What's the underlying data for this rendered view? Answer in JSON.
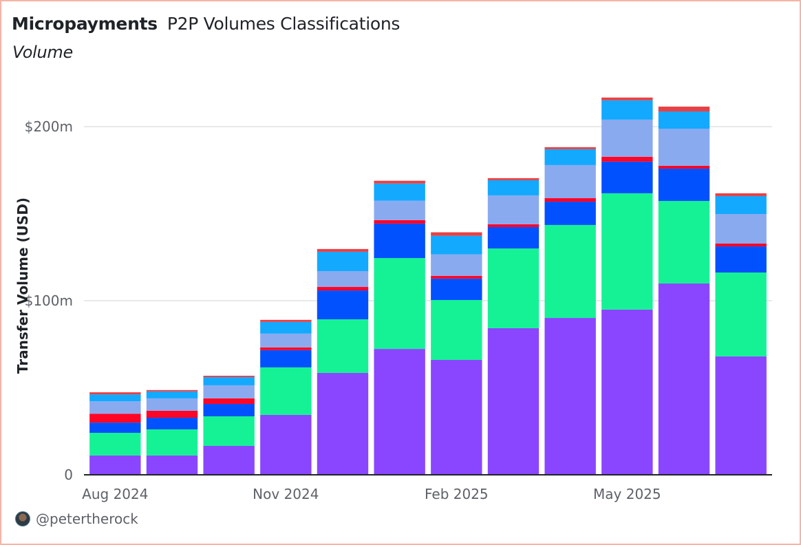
{
  "header": {
    "title": "Micropayments",
    "subtitle_inline": "P2P Volumes Classifications",
    "subtitle": "Volume"
  },
  "footer": {
    "author": "@petertherock",
    "avatar_icon": "user-avatar"
  },
  "chart_data": {
    "type": "bar",
    "stacked": true,
    "title": "Micropayments P2P Volumes Classifications",
    "subtitle": "Volume",
    "xlabel": "",
    "ylabel": "Transfer Volume (USD)",
    "ylim": [
      0,
      225
    ],
    "y_unit": "million USD",
    "yticks": [
      0,
      100,
      200
    ],
    "ytick_labels": [
      "0",
      "$100m",
      "$200m"
    ],
    "x_tick_labels": [
      {
        "index": 0,
        "label": "Aug 2024"
      },
      {
        "index": 3,
        "label": "Nov 2024"
      },
      {
        "index": 6,
        "label": "Feb 2025"
      },
      {
        "index": 9,
        "label": "May 2025"
      }
    ],
    "categories": [
      "2024-08",
      "2024-09",
      "2024-10",
      "2024-11",
      "2024-12",
      "2025-01",
      "2025-02",
      "2025-03",
      "2025-04",
      "2025-05",
      "2025-06",
      "2025-07"
    ],
    "grid": true,
    "legend": "none",
    "series": [
      {
        "name": "purple",
        "color": "#8a46ff",
        "values": [
          11.1,
          11.1,
          16.6,
          34.4,
          58.5,
          72.3,
          66.0,
          84.2,
          90.1,
          94.9,
          109.9,
          68.0
        ]
      },
      {
        "name": "green",
        "color": "#15f296",
        "values": [
          13.0,
          15.0,
          17.0,
          27.3,
          30.8,
          52.2,
          34.4,
          45.8,
          53.4,
          66.8,
          47.4,
          48.2
        ]
      },
      {
        "name": "blue",
        "color": "#0151ff",
        "values": [
          5.9,
          6.7,
          7.1,
          9.9,
          16.6,
          19.8,
          12.3,
          12.3,
          13.4,
          18.2,
          18.6,
          15.0
        ]
      },
      {
        "name": "red",
        "color": "#ff0627",
        "values": [
          5.1,
          4.0,
          3.2,
          1.6,
          2.0,
          2.0,
          1.6,
          1.6,
          2.0,
          2.8,
          1.6,
          1.6
        ]
      },
      {
        "name": "light-blue",
        "color": "#8aaaf0",
        "values": [
          7.1,
          7.1,
          7.5,
          7.9,
          9.1,
          11.1,
          12.3,
          16.6,
          19.0,
          21.3,
          21.3,
          17.0
        ]
      },
      {
        "name": "cyan",
        "color": "#13a9ff",
        "values": [
          4.0,
          4.0,
          4.7,
          6.7,
          11.1,
          9.9,
          10.7,
          8.7,
          9.1,
          11.1,
          9.9,
          10.3
        ]
      },
      {
        "name": "coral-red",
        "color": "#e84144",
        "values": [
          1.2,
          0.8,
          0.8,
          1.2,
          1.6,
          1.6,
          2.0,
          1.2,
          1.2,
          1.6,
          2.8,
          1.6
        ]
      }
    ]
  }
}
